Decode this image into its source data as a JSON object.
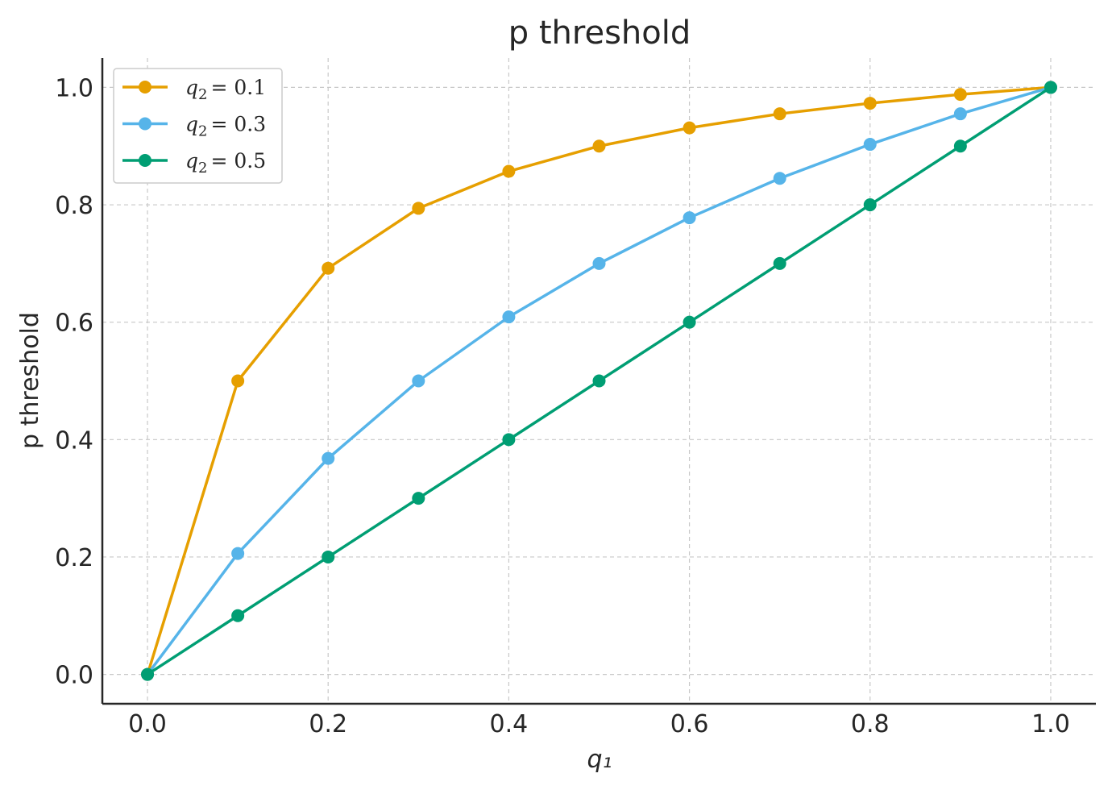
{
  "chart_data": {
    "type": "line",
    "title": "p threshold",
    "xlabel": "q₁",
    "ylabel": "p threshold",
    "xlim": [
      -0.05,
      1.05
    ],
    "ylim": [
      -0.05,
      1.05
    ],
    "x_ticks": [
      0.0,
      0.2,
      0.4,
      0.6,
      0.8,
      1.0
    ],
    "y_ticks": [
      0.0,
      0.2,
      0.4,
      0.6,
      0.8,
      1.0
    ],
    "x_tick_labels": [
      "0.0",
      "0.2",
      "0.4",
      "0.6",
      "0.8",
      "1.0"
    ],
    "y_tick_labels": [
      "0.0",
      "0.2",
      "0.4",
      "0.6",
      "0.8",
      "1.0"
    ],
    "grid": true,
    "legend_position": "top-left",
    "x": [
      0.0,
      0.1,
      0.2,
      0.3,
      0.4,
      0.5,
      0.6,
      0.7,
      0.8,
      0.9,
      1.0
    ],
    "series": [
      {
        "name": "q₂ = 0.1",
        "name_var": "q",
        "name_sub": "2",
        "name_eq": "= 0.1",
        "color": "#E69F00",
        "values": [
          0.0,
          0.5,
          0.692,
          0.794,
          0.857,
          0.9,
          0.931,
          0.955,
          0.973,
          0.988,
          1.0
        ]
      },
      {
        "name": "q₂ = 0.3",
        "name_var": "q",
        "name_sub": "2",
        "name_eq": "= 0.3",
        "color": "#56B4E9",
        "values": [
          0.0,
          0.206,
          0.368,
          0.5,
          0.609,
          0.7,
          0.778,
          0.845,
          0.903,
          0.955,
          1.0
        ]
      },
      {
        "name": "q₂ = 0.5",
        "name_var": "q",
        "name_sub": "2",
        "name_eq": "= 0.5",
        "color": "#009E73",
        "values": [
          0.0,
          0.1,
          0.2,
          0.3,
          0.4,
          0.5,
          0.6,
          0.7,
          0.8,
          0.9,
          1.0
        ]
      }
    ]
  }
}
